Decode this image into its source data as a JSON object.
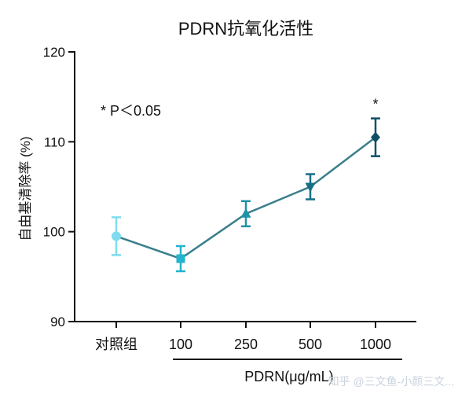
{
  "chart_data": {
    "type": "line",
    "title": "PDRN抗氧化活性",
    "ylabel": "自由基清除率 (%)",
    "xlabel": "PDRN(μg/mL)",
    "categories": [
      "对照组",
      "100",
      "250",
      "500",
      "1000"
    ],
    "values": [
      99.5,
      97.0,
      102.0,
      105.0,
      110.5
    ],
    "errors": [
      2.1,
      1.4,
      1.4,
      1.4,
      2.1
    ],
    "significance": [
      "",
      "",
      "",
      "",
      "*"
    ],
    "ylim": [
      90,
      120
    ],
    "yticks": [
      90,
      100,
      110,
      120
    ],
    "ytick_labels": [
      "90",
      "100",
      "110",
      "120"
    ],
    "annotation": "* P＜0.05",
    "markers": [
      "circle",
      "square",
      "triangle-up",
      "triangle-down",
      "diamond"
    ],
    "point_colors": [
      "#7fdcee",
      "#23b3cc",
      "#1f92a8",
      "#156f86",
      "#0f4f66"
    ],
    "line_color": "#3a7f8c",
    "grid": false
  },
  "watermark": "知乎 @三文鱼-小颜三文..."
}
